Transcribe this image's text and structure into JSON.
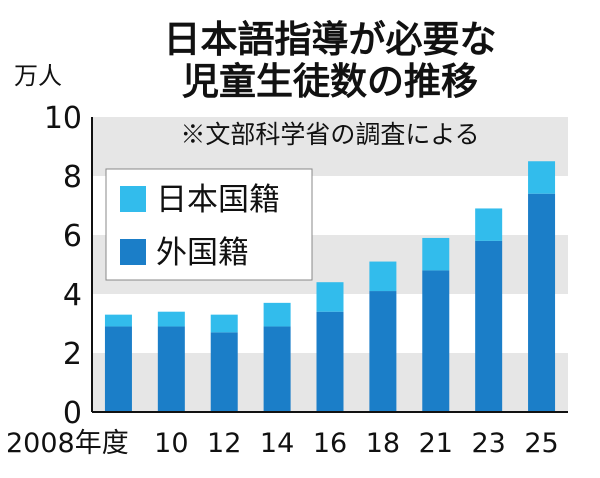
{
  "chart_data": {
    "type": "bar",
    "stacked": true,
    "title": [
      "日本語指導が必要な",
      "児童生徒数の推移"
    ],
    "unit_label": "万人",
    "note": "※文部科学省の調査による",
    "categories": [
      "2008年度",
      "10",
      "12",
      "14",
      "16",
      "18",
      "21",
      "23",
      "25"
    ],
    "series": [
      {
        "name": "外国籍",
        "values": [
          2.9,
          2.9,
          2.7,
          2.9,
          3.4,
          4.1,
          4.8,
          5.8,
          7.4
        ],
        "color": "#1b7ec8"
      },
      {
        "name": "日本国籍",
        "values": [
          0.4,
          0.5,
          0.6,
          0.8,
          1.0,
          1.0,
          1.1,
          1.1,
          1.1
        ],
        "color": "#32bcec"
      }
    ],
    "ylim": [
      0,
      10
    ],
    "yticks": [
      0,
      2,
      4,
      6,
      8,
      10
    ],
    "legend": {
      "placement": "upper-left",
      "items": [
        "日本国籍",
        "外国籍"
      ]
    },
    "grid": "alternating horizontal bands"
  }
}
